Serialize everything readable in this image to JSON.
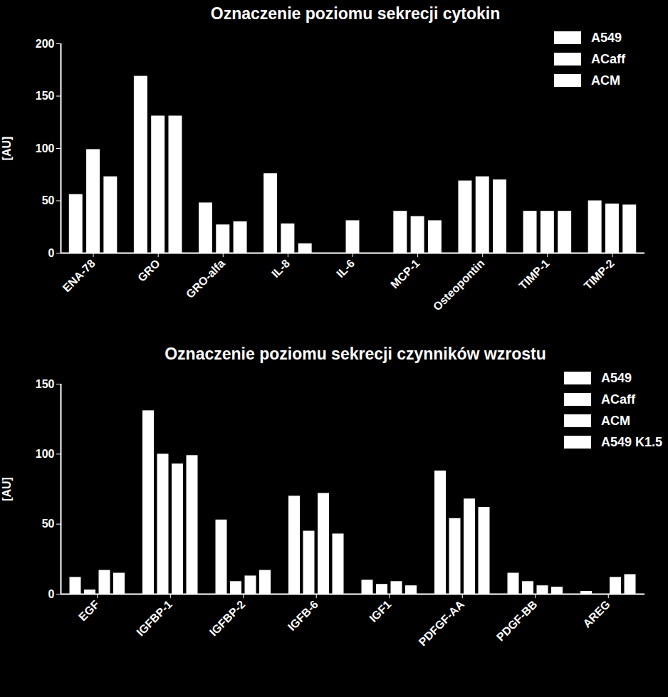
{
  "chart_data": [
    {
      "type": "bar",
      "title": "Oznaczenie poziomu sekrecji cytokin",
      "y_label": "[AU]",
      "categories": [
        "ENA-78",
        "GRO",
        "GRO-alfa",
        "IL-8",
        "IL-6",
        "MCP-1",
        "Osteopontin",
        "TIMP-1",
        "TIMP-2"
      ],
      "series": [
        {
          "name": "A549",
          "color": "#ffffff",
          "values": [
            56,
            169,
            48,
            76,
            0,
            40,
            69,
            40,
            50
          ]
        },
        {
          "name": "ACaff",
          "color": "#ffffff",
          "values": [
            99,
            131,
            27,
            28,
            31,
            35,
            73,
            40,
            47
          ]
        },
        {
          "name": "ACM",
          "color": "#ffffff",
          "values": [
            73,
            131,
            30,
            9,
            0,
            31,
            70,
            40,
            46
          ]
        }
      ],
      "ylim": [
        0,
        200
      ],
      "yticks": [
        0,
        50,
        100,
        150,
        200
      ],
      "legend": "top-right"
    },
    {
      "type": "bar",
      "title": "Oznaczenie poziomu sekrecji czynników wzrostu",
      "y_label": "[AU]",
      "categories": [
        "EGF",
        "IGFBP-1",
        "IGFBP-2",
        "IGFB-6",
        "IGF1",
        "PDFGF-AA",
        "PDGF-BB",
        "AREG"
      ],
      "series": [
        {
          "name": "A549",
          "color": "#ffffff",
          "values": [
            12,
            131,
            53,
            70,
            10,
            88,
            15,
            2
          ]
        },
        {
          "name": "ACaff",
          "color": "#ffffff",
          "values": [
            3,
            100,
            9,
            45,
            7,
            54,
            9,
            0
          ]
        },
        {
          "name": "ACM",
          "color": "#ffffff",
          "values": [
            17,
            93,
            13,
            72,
            9,
            68,
            6,
            12
          ]
        },
        {
          "name": "A549 K1.5",
          "color": "#ffffff",
          "values": [
            15,
            99,
            17,
            43,
            6,
            62,
            5,
            14
          ]
        }
      ],
      "ylim": [
        0,
        150
      ],
      "yticks": [
        0,
        50,
        100,
        150
      ],
      "legend": "top-right"
    }
  ]
}
